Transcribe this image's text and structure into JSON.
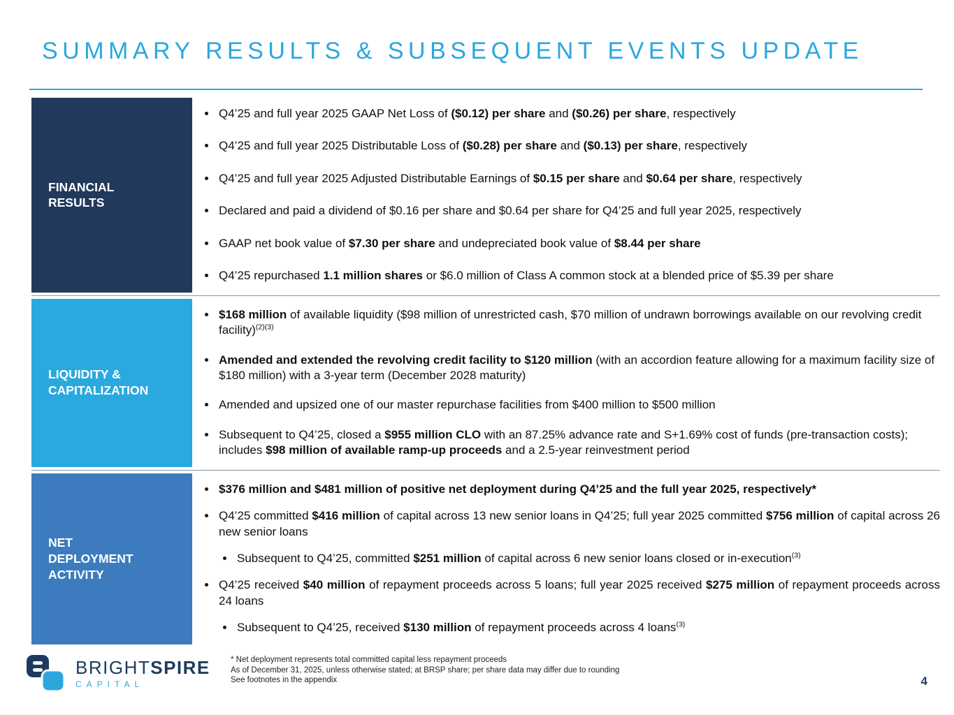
{
  "page": {
    "title": "SUMMARY RESULTS & SUBSEQUENT EVENTS UPDATE",
    "page_number": "4"
  },
  "colors": {
    "accent": "#2BA7DE",
    "navy": "#1E3A5F",
    "separator": "#8794A6"
  },
  "sections": [
    {
      "label_lines": [
        "FINANCIAL",
        "RESULTS"
      ],
      "color": "#21395B",
      "bullets": [
        {
          "level": 1,
          "segments": [
            {
              "t": "Q4’25 and full year 2025 GAAP Net Loss of "
            },
            {
              "t": "($0.12) per share",
              "b": true
            },
            {
              "t": " and "
            },
            {
              "t": "($0.26) per share",
              "b": true
            },
            {
              "t": ", respectively"
            }
          ]
        },
        {
          "level": 1,
          "segments": [
            {
              "t": "Q4’25 and full year 2025 Distributable Loss of "
            },
            {
              "t": "($0.28) per share",
              "b": true
            },
            {
              "t": " and "
            },
            {
              "t": "($0.13) per share",
              "b": true
            },
            {
              "t": ", respectively"
            }
          ]
        },
        {
          "level": 1,
          "segments": [
            {
              "t": "Q4’25 and full year 2025 Adjusted Distributable Earnings of "
            },
            {
              "t": "$0.15 per share",
              "b": true
            },
            {
              "t": " and "
            },
            {
              "t": "$0.64 per share",
              "b": true
            },
            {
              "t": ", respectively"
            }
          ]
        },
        {
          "level": 1,
          "segments": [
            {
              "t": "Declared and paid a dividend of $0.16 per share and $0.64 per share for Q4’25 and full year 2025, respectively"
            }
          ]
        },
        {
          "level": 1,
          "segments": [
            {
              "t": "GAAP net book value of "
            },
            {
              "t": "$7.30 per share",
              "b": true
            },
            {
              "t": " and undepreciated book value of "
            },
            {
              "t": "$8.44 per share",
              "b": true
            }
          ]
        },
        {
          "level": 1,
          "segments": [
            {
              "t": "Q4’25 repurchased "
            },
            {
              "t": "1.1 million shares",
              "b": true
            },
            {
              "t": " or $6.0 million of Class A common stock at a blended price of $5.39 per share"
            }
          ]
        }
      ]
    },
    {
      "label_lines": [
        "LIQUIDITY &",
        "CAPITALIZATION"
      ],
      "color": "#2AA9DF",
      "bullets": [
        {
          "level": 1,
          "segments": [
            {
              "t": "$168 million",
              "b": true
            },
            {
              "t": " of available liquidity ($98 million of unrestricted cash, $70 million of undrawn borrowings available on our revolving credit facility)"
            },
            {
              "t": "(2)(3)",
              "sup": true
            }
          ]
        },
        {
          "level": 1,
          "segments": [
            {
              "t": "Amended and extended the revolving credit facility to $120 million",
              "b": true
            },
            {
              "t": " (with an accordion feature allowing for a maximum facility size of $180 million) with a 3-year term (December 2028 maturity)"
            }
          ]
        },
        {
          "level": 1,
          "segments": [
            {
              "t": "Amended and upsized one of our master repurchase facilities from $400 million to $500 million"
            }
          ]
        },
        {
          "level": 1,
          "segments": [
            {
              "t": "Subsequent to Q4’25, closed a "
            },
            {
              "t": "$955 million CLO",
              "b": true
            },
            {
              "t": " with an 87.25% advance rate and S+1.69% cost of funds (pre-transaction costs); includes "
            },
            {
              "t": "$98 million of available ramp-up proceeds",
              "b": true
            },
            {
              "t": " and a 2.5-year reinvestment period"
            }
          ]
        }
      ]
    },
    {
      "label_lines": [
        "NET",
        "DEPLOYMENT",
        "ACTIVITY"
      ],
      "color": "#3C7CBE",
      "bullets": [
        {
          "level": 1,
          "segments": [
            {
              "t": "$376 million and $481 million of positive net deployment during Q4’25 and the full year 2025, respectively*",
              "b": true
            }
          ]
        },
        {
          "level": 1,
          "justify": true,
          "segments": [
            {
              "t": "Q4’25 committed "
            },
            {
              "t": "$416 million",
              "b": true
            },
            {
              "t": " of capital across 13 new senior loans in Q4’25; full year 2025 committed "
            },
            {
              "t": "$756 million",
              "b": true
            },
            {
              "t": " of capital across 26 new senior loans"
            }
          ]
        },
        {
          "level": 2,
          "segments": [
            {
              "t": "Subsequent to Q4’25, committed "
            },
            {
              "t": "$251 million",
              "b": true
            },
            {
              "t": " of capital across 6 new senior loans closed or in-execution"
            },
            {
              "t": "(3)",
              "sup": true
            }
          ]
        },
        {
          "level": 1,
          "justify": true,
          "segments": [
            {
              "t": "Q4’25 received "
            },
            {
              "t": "$40 million",
              "b": true
            },
            {
              "t": " of repayment proceeds across 5 loans; full year 2025 received "
            },
            {
              "t": "$275 million",
              "b": true
            },
            {
              "t": " of repayment proceeds across 24 loans"
            }
          ]
        },
        {
          "level": 2,
          "segments": [
            {
              "t": "Subsequent to Q4’25, received "
            },
            {
              "t": "$130 million",
              "b": true
            },
            {
              "t": " of repayment proceeds across 4 loans"
            },
            {
              "t": "(3)",
              "sup": true
            }
          ]
        }
      ]
    }
  ],
  "footer": {
    "logo": {
      "name_light": "BRIGHT",
      "name_bold": "SPIRE",
      "subtitle": "CAPITAL"
    },
    "footnotes": [
      "* Net deployment represents total committed capital less repayment proceeds",
      "As of December 31, 2025, unless otherwise stated; at BRSP share; per share data may differ due to rounding",
      "See footnotes in the appendix"
    ]
  }
}
